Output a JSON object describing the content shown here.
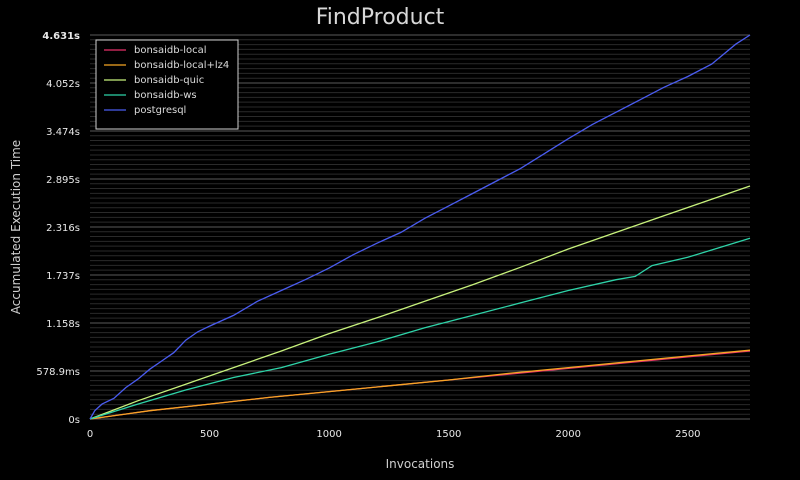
{
  "chart_data": {
    "type": "line",
    "title": "FindProduct",
    "xlabel": "Invocations",
    "ylabel": "Accumulated Execution Time",
    "xlim": [
      0,
      2760
    ],
    "ylim": [
      0,
      4.631
    ],
    "x_ticks": [
      {
        "value": 0,
        "label": "0"
      },
      {
        "value": 500,
        "label": "500"
      },
      {
        "value": 1000,
        "label": "1000"
      },
      {
        "value": 1500,
        "label": "1500"
      },
      {
        "value": 2000,
        "label": "2000"
      },
      {
        "value": 2500,
        "label": "2500"
      }
    ],
    "y_ticks": [
      {
        "value": 0,
        "label": "0s"
      },
      {
        "value": 0.5789,
        "label": "578.9ms"
      },
      {
        "value": 1.158,
        "label": "1.158s"
      },
      {
        "value": 1.737,
        "label": "1.737s"
      },
      {
        "value": 2.316,
        "label": "2.316s"
      },
      {
        "value": 2.895,
        "label": "2.895s"
      },
      {
        "value": 3.474,
        "label": "3.474s"
      },
      {
        "value": 4.052,
        "label": "4.052s"
      },
      {
        "value": 4.631,
        "label": "4.631s",
        "bold": true
      }
    ],
    "grid": true,
    "legend_position": "top-left",
    "series": [
      {
        "name": "bonsaidb-local",
        "color": "#e8306a",
        "points": [
          [
            0,
            0
          ],
          [
            250,
            0.1
          ],
          [
            500,
            0.18
          ],
          [
            750,
            0.26
          ],
          [
            1000,
            0.33
          ],
          [
            1250,
            0.4
          ],
          [
            1500,
            0.47
          ],
          [
            1750,
            0.54
          ],
          [
            2000,
            0.61
          ],
          [
            2250,
            0.68
          ],
          [
            2500,
            0.75
          ],
          [
            2760,
            0.82
          ]
        ]
      },
      {
        "name": "bonsaidb-local+lz4",
        "color": "#f5a623",
        "points": [
          [
            0,
            0
          ],
          [
            250,
            0.1
          ],
          [
            500,
            0.18
          ],
          [
            750,
            0.26
          ],
          [
            1000,
            0.33
          ],
          [
            1250,
            0.4
          ],
          [
            1500,
            0.47
          ],
          [
            1750,
            0.55
          ],
          [
            2000,
            0.62
          ],
          [
            2250,
            0.69
          ],
          [
            2500,
            0.76
          ],
          [
            2760,
            0.83
          ]
        ]
      },
      {
        "name": "bonsaidb-quic",
        "color": "#c8f27c",
        "points": [
          [
            0,
            0
          ],
          [
            200,
            0.22
          ],
          [
            400,
            0.42
          ],
          [
            600,
            0.62
          ],
          [
            800,
            0.82
          ],
          [
            1000,
            1.03
          ],
          [
            1200,
            1.22
          ],
          [
            1400,
            1.42
          ],
          [
            1600,
            1.62
          ],
          [
            1800,
            1.83
          ],
          [
            2000,
            2.05
          ],
          [
            2200,
            2.25
          ],
          [
            2400,
            2.45
          ],
          [
            2600,
            2.65
          ],
          [
            2760,
            2.81
          ]
        ]
      },
      {
        "name": "bonsaidb-ws",
        "color": "#2ed3a8",
        "points": [
          [
            0,
            0
          ],
          [
            200,
            0.18
          ],
          [
            400,
            0.35
          ],
          [
            600,
            0.5
          ],
          [
            800,
            0.62
          ],
          [
            1000,
            0.78
          ],
          [
            1200,
            0.93
          ],
          [
            1400,
            1.1
          ],
          [
            1600,
            1.25
          ],
          [
            1800,
            1.4
          ],
          [
            2000,
            1.55
          ],
          [
            2200,
            1.68
          ],
          [
            2280,
            1.72
          ],
          [
            2350,
            1.85
          ],
          [
            2500,
            1.95
          ],
          [
            2760,
            2.18
          ]
        ]
      },
      {
        "name": "postgresql",
        "color": "#4a5cf0",
        "points": [
          [
            0,
            0
          ],
          [
            20,
            0.1
          ],
          [
            50,
            0.18
          ],
          [
            100,
            0.25
          ],
          [
            150,
            0.38
          ],
          [
            200,
            0.48
          ],
          [
            250,
            0.6
          ],
          [
            300,
            0.7
          ],
          [
            350,
            0.8
          ],
          [
            400,
            0.95
          ],
          [
            450,
            1.05
          ],
          [
            500,
            1.12
          ],
          [
            600,
            1.25
          ],
          [
            700,
            1.42
          ],
          [
            800,
            1.55
          ],
          [
            900,
            1.68
          ],
          [
            1000,
            1.82
          ],
          [
            1100,
            1.98
          ],
          [
            1200,
            2.12
          ],
          [
            1300,
            2.25
          ],
          [
            1400,
            2.42
          ],
          [
            1500,
            2.57
          ],
          [
            1600,
            2.72
          ],
          [
            1700,
            2.87
          ],
          [
            1800,
            3.02
          ],
          [
            1900,
            3.2
          ],
          [
            2000,
            3.38
          ],
          [
            2100,
            3.55
          ],
          [
            2200,
            3.7
          ],
          [
            2300,
            3.85
          ],
          [
            2400,
            4.0
          ],
          [
            2500,
            4.13
          ],
          [
            2600,
            4.28
          ],
          [
            2700,
            4.52
          ],
          [
            2760,
            4.631
          ]
        ]
      }
    ]
  }
}
